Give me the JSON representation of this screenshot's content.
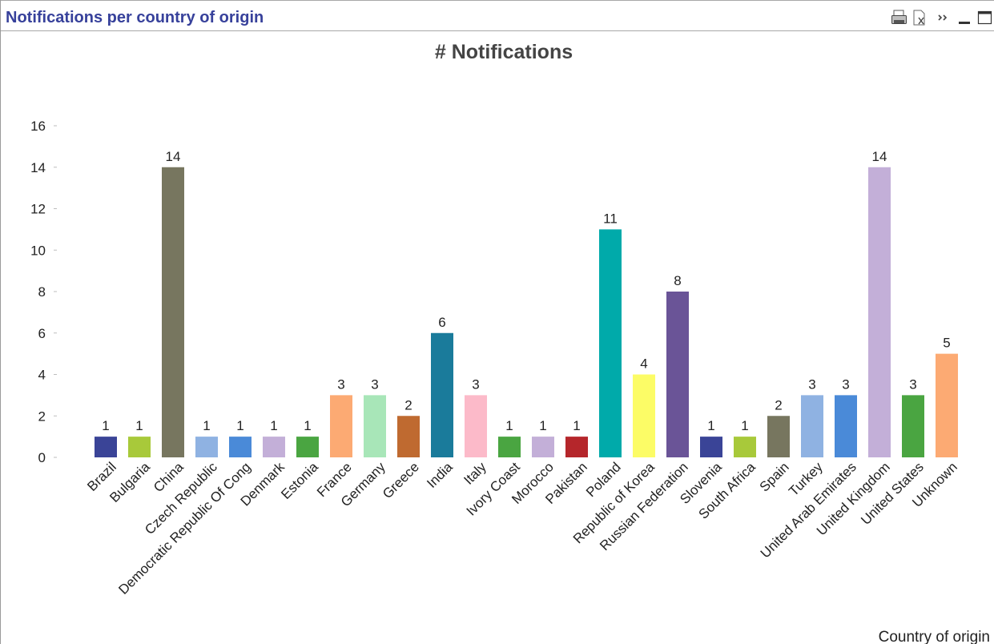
{
  "window": {
    "caption": "Notifications per country of origin",
    "tools": [
      "print-icon",
      "send-to-excel-icon",
      "more-options-icon",
      "minimize-icon",
      "maximize-icon"
    ]
  },
  "chart_data": {
    "type": "bar",
    "title": "# Notifications",
    "xlabel": "Country of origin",
    "ylabel": "",
    "ylim": [
      0,
      16
    ],
    "yticks": [
      "0",
      "2",
      "4",
      "6",
      "8",
      "10",
      "12",
      "14",
      "16"
    ],
    "grid": false,
    "legend": "none",
    "categories": [
      "Brazil",
      "Bulgaria",
      "China",
      "Czech Republic",
      "Democratic Republic Of Cong",
      "Denmark",
      "Estonia",
      "France",
      "Germany",
      "Greece",
      "India",
      "Italy",
      "Ivory Coast",
      "Morocco",
      "Pakistan",
      "Poland",
      "Republic of Korea",
      "Russian Federation",
      "Slovenia",
      "South Africa",
      "Spain",
      "Turkey",
      "United Arab Emirates",
      "United Kingdom",
      "United States",
      "Unknown"
    ],
    "values": [
      1,
      1,
      14,
      1,
      1,
      1,
      1,
      3,
      3,
      2,
      6,
      3,
      1,
      1,
      1,
      11,
      4,
      8,
      1,
      1,
      2,
      3,
      3,
      14,
      3,
      5
    ],
    "colors": [
      "#3a4497",
      "#a8c93a",
      "#77765f",
      "#8fb2e2",
      "#4a8ad8",
      "#c3afd8",
      "#4aa541",
      "#fcaa73",
      "#a8e6b8",
      "#bf6a30",
      "#1a7b9b",
      "#fcbac9",
      "#4aa541",
      "#c3afd8",
      "#b5262b",
      "#00aaaa",
      "#fcfc66",
      "#6a5497",
      "#3a4497",
      "#a8c93a",
      "#77765f",
      "#8fb2e2",
      "#4a8ad8",
      "#c3afd8",
      "#4aa541",
      "#fcaa73"
    ]
  }
}
